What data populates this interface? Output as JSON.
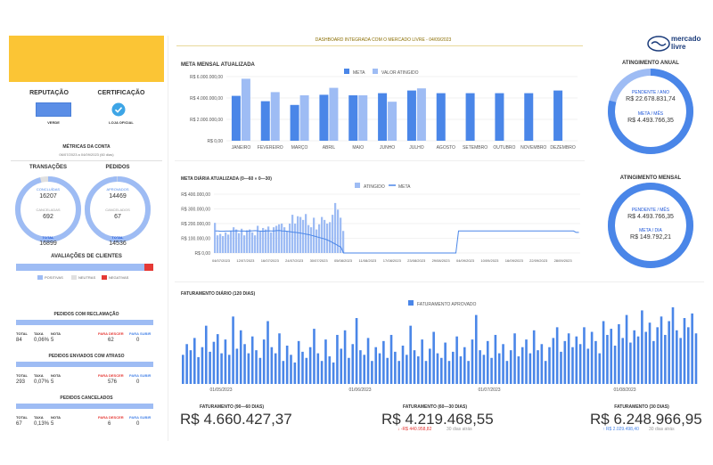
{
  "colors": {
    "accent": "#4a86e8",
    "light": "#9ebcf4",
    "dark_blue": "#1c55d8",
    "red": "#e53935",
    "yellow": "#fbc535"
  },
  "header": {
    "title": "DASHBOARD INTEGRADA COM O MERCADO LIVRE - 04/09/2023",
    "logo_line1": "mercado",
    "logo_line2": "livre"
  },
  "left": {
    "reputacao": {
      "label": "REPUTAÇÃO",
      "value": "VERDE"
    },
    "certificacao": {
      "label": "CERTIFICAÇÃO",
      "value": "LOJA OFICIAL"
    },
    "metrics_title": "MÉTRICAS DA CONTA",
    "metrics_period": "06/07/2023 a 04/09/2023 (60 dias)",
    "transacoes": {
      "label": "TRANSAÇÕES",
      "concluidas_label": "CONCLUÍDAS",
      "concluidas": "16207",
      "canceladas_label": "CANCELADAS",
      "canceladas": "692",
      "total_label": "TOTAL",
      "total": "16899"
    },
    "pedidos": {
      "label": "PEDIDOS",
      "aprovados_label": "APROVADOS",
      "aprovados": "14469",
      "cancelados_label": "CANCELADOS",
      "cancelados": "67",
      "total_label": "TOTAL",
      "total": "14536"
    },
    "avaliacoes": {
      "title": "AVALIAÇÕES DE CLIENTES",
      "legend": [
        "POSITIVAS",
        "NEUTRAS",
        "NEGATIVAS"
      ],
      "positivas_pct": 0.96
    },
    "reclamacao": {
      "title": "PEDIDOS COM RECLAMAÇÃO",
      "headers": [
        "TOTAL",
        "TAXA",
        "NOTA",
        "PARA DESCER",
        "PARA SUBIR"
      ],
      "values": [
        "84",
        "0,06%",
        "5",
        "62",
        "0"
      ]
    },
    "atraso": {
      "title": "PEDIDOS ENVIADOS COM ATRASO",
      "headers": [
        "TOTAL",
        "TAXA",
        "NOTA",
        "PARA DESCER",
        "PARA SUBIR"
      ],
      "values": [
        "293",
        "0,07%",
        "5",
        "576",
        "0"
      ]
    },
    "cancelados": {
      "title": "PEDIDOS CANCELADOS",
      "headers": [
        "TOTAL",
        "TAXA",
        "NOTA",
        "PARA DESCER",
        "PARA SUBIR"
      ],
      "values": [
        "67",
        "0,13%",
        "5",
        "6",
        "0"
      ]
    }
  },
  "anual": {
    "title": "ATINGIMENTO ANUAL",
    "pendente_label": "PENDENTE / ANO",
    "pendente": "R$ 22.678.831,74",
    "meta_label": "META / MÊS",
    "meta": "R$ 4.493.766,35",
    "progress": 0.79
  },
  "mensal": {
    "title": "ATINGIMENTO MENSAL",
    "pendente_label": "PENDENTE / MÊS",
    "pendente": "R$ 4.493.766,35",
    "meta_label": "META / DIA",
    "meta": "R$ 149.792,21",
    "progress": 1.0
  },
  "faturamento": {
    "f1": {
      "label": "FATURAMENTO (90—60 DIAS)",
      "value": "R$ 4.660.427,37"
    },
    "f2": {
      "label": "FATURAMENTO (60—30 DIAS)",
      "value": "R$ 4.219.468,55",
      "delta": "↓ -R$ 440.958,82",
      "delta_suffix": "30 dias atrás"
    },
    "f3": {
      "label": "FATURAMENTO (30 DIAS)",
      "value": "R$ 6.248.966,95",
      "delta": "↑ R$ 2.029.498,40",
      "delta_suffix": "30 dias atrás"
    }
  },
  "chart_data": [
    {
      "type": "bar",
      "title": "META MENSAL ATUALIZADA",
      "categories": [
        "JANEIRO",
        "FEVEREIRO",
        "MARÇO",
        "ABRIL",
        "MAIO",
        "JUNHO",
        "JULHO",
        "AGOSTO",
        "SETEMBRO",
        "OUTUBRO",
        "NOVEMBRO",
        "DEZEMBRO"
      ],
      "series": [
        {
          "name": "META",
          "values": [
            4200000,
            3700000,
            3350000,
            4300000,
            4250000,
            4450000,
            4700000,
            4450000,
            4450000,
            4450000,
            4450000,
            4700000
          ]
        },
        {
          "name": "VALOR ATINGIDO",
          "values": [
            5800000,
            4550000,
            4250000,
            4950000,
            4250000,
            3650000,
            4900000,
            null,
            null,
            null,
            null,
            null
          ]
        }
      ],
      "yticks": [
        "R$ 0,00",
        "R$ 2.000.000,00",
        "R$ 4.000.000,00",
        "R$ 6.000.000,00"
      ],
      "ylim": [
        0,
        6000000
      ]
    },
    {
      "type": "bar",
      "title": "META DIÁRIA ATUALIZADA (0—60 » 0—30)",
      "legend": [
        "ATINGIDO",
        "META"
      ],
      "xticks": [
        "04/07/2023",
        "12/07/2023",
        "16/07/2023",
        "24/07/2023",
        "30/07/2023",
        "05/08/2023",
        "11/08/2023",
        "17/08/2023",
        "23/08/2023",
        "29/08/2023",
        "04/09/2023",
        "10/09/2023",
        "16/09/2023",
        "22/09/2023",
        "28/09/2023"
      ],
      "yticks": [
        "R$ 0,00",
        "R$ 100.000,00",
        "R$ 200.000,00",
        "R$ 300.000,00",
        "R$ 400.000,00"
      ],
      "ylim": [
        0,
        400000
      ],
      "atingido": [
        205000,
        120000,
        130000,
        115000,
        140000,
        125000,
        150000,
        175000,
        160000,
        135000,
        165000,
        120000,
        155000,
        160000,
        140000,
        120000,
        185000,
        150000,
        170000,
        160000,
        180000,
        140000,
        175000,
        185000,
        195000,
        200000,
        175000,
        150000,
        200000,
        260000,
        200000,
        250000,
        245000,
        225000,
        265000,
        190000,
        175000,
        240000,
        160000,
        195000,
        245000,
        225000,
        200000,
        210000,
        260000,
        340000,
        295000,
        240000,
        150000
      ],
      "meta": [
        150000,
        150000,
        148000,
        148000,
        149000,
        149000,
        150000,
        150000,
        151000,
        150000,
        149000,
        149000,
        148000,
        150000,
        151000,
        152000,
        150000,
        149000,
        148000,
        150000,
        151000,
        150000,
        150000,
        152000,
        153000,
        150000,
        149000,
        148000,
        145000,
        142000,
        140000,
        138000,
        135000,
        132000,
        128000,
        125000,
        120000,
        115000,
        110000,
        105000,
        100000,
        95000,
        88000,
        80000,
        70000,
        60000,
        50000,
        40000,
        0,
        0,
        0,
        0,
        0,
        0,
        0,
        0,
        0,
        0,
        0,
        0,
        0,
        0,
        0,
        0,
        0,
        0,
        0,
        0,
        0,
        0,
        0,
        0,
        0,
        0,
        0,
        0,
        0,
        0,
        0,
        0,
        0,
        0,
        0,
        0,
        0,
        0,
        0,
        0,
        0,
        0,
        0,
        150000,
        150000,
        150000,
        150000,
        150000,
        150000,
        150000,
        150000,
        150000,
        150000,
        150000,
        150000,
        150000,
        150000,
        150000,
        150000,
        150000,
        150000,
        150000,
        150000,
        150000,
        150000,
        150000,
        150000,
        150000,
        150000,
        150000,
        150000,
        150000,
        150000,
        150000,
        150000,
        150000,
        150000,
        150000,
        150000,
        150000,
        150000,
        150000,
        150000,
        150000,
        150000,
        150000,
        150000,
        140000,
        140000
      ]
    },
    {
      "type": "bar",
      "title": "FATURAMENTO DIÁRIO (120 DIAS)",
      "legend": [
        "FATURAMENTO APROVADO"
      ],
      "xticks": [
        "01/05/2023",
        "01/06/2023",
        "01/07/2023",
        "01/08/2023"
      ],
      "values": [
        38,
        52,
        44,
        60,
        35,
        48,
        76,
        42,
        55,
        65,
        40,
        58,
        38,
        88,
        46,
        70,
        52,
        40,
        62,
        44,
        34,
        58,
        82,
        48,
        40,
        66,
        30,
        50,
        38,
        28,
        56,
        42,
        34,
        48,
        72,
        40,
        30,
        58,
        36,
        28,
        64,
        46,
        70,
        34,
        52,
        86,
        44,
        38,
        60,
        30,
        48,
        40,
        56,
        34,
        64,
        42,
        30,
        50,
        38,
        76,
        44,
        36,
        58,
        30,
        46,
        68,
        40,
        34,
        54,
        30,
        42,
        62,
        36,
        48,
        30,
        58,
        90,
        44,
        38,
        56,
        34,
        64,
        40,
        52,
        30,
        44,
        66,
        36,
        48,
        58,
        40,
        70,
        44,
        52,
        30,
        48,
        60,
        74,
        42,
        56,
        66,
        48,
        62,
        52,
        74,
        46,
        68,
        56,
        40,
        82,
        64,
        72,
        50,
        78,
        60,
        90,
        54,
        70,
        62,
        96,
        68,
        80,
        56,
        74,
        88,
        64,
        82,
        100,
        70,
        60,
        86,
        74,
        92,
        66
      ]
    }
  ]
}
